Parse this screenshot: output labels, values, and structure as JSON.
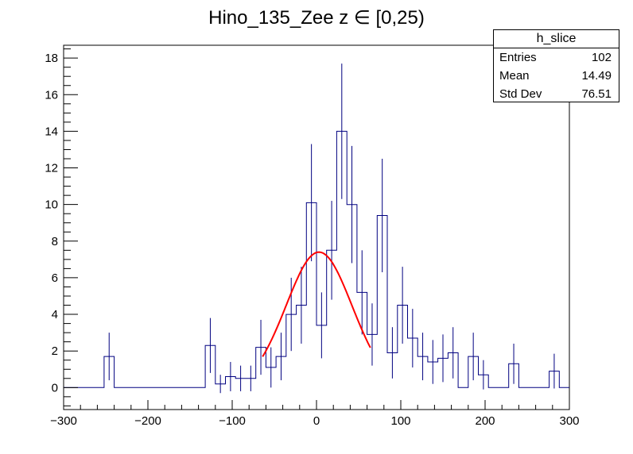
{
  "chart_data": {
    "type": "histogram",
    "title": "Hino_135_Zee z  ∈ [0,25)",
    "xlabel": "",
    "ylabel": "",
    "xlim": [
      -300,
      300
    ],
    "ylim": [
      -1.2,
      18.7
    ],
    "x_ticks": [
      -300,
      -200,
      -100,
      0,
      100,
      200,
      300
    ],
    "y_ticks": [
      0,
      2,
      4,
      6,
      8,
      10,
      12,
      14,
      16,
      18
    ],
    "bin_width": 12,
    "bin_edges_start": -300,
    "values": [
      0,
      0,
      0,
      0,
      1.7,
      0,
      0,
      0,
      0,
      0,
      0,
      0,
      0,
      0,
      2.3,
      0.2,
      0.6,
      0.5,
      0.5,
      2.2,
      1.1,
      1.7,
      4.0,
      4.5,
      10.1,
      3.4,
      7.5,
      14.0,
      10.0,
      5.2,
      2.9,
      9.4,
      1.9,
      4.5,
      2.7,
      1.7,
      1.4,
      1.6,
      1.9,
      0,
      1.7,
      0.7,
      0,
      0,
      1.3,
      0,
      0,
      0,
      0.9,
      0
    ],
    "errors": [
      0,
      0,
      0,
      0,
      1.3,
      0,
      0,
      0,
      0,
      0,
      0,
      0,
      0,
      0,
      1.5,
      0.5,
      0.8,
      0.7,
      0.7,
      1.5,
      1.1,
      1.3,
      2.0,
      2.1,
      3.2,
      1.8,
      2.7,
      3.7,
      3.2,
      2.3,
      1.7,
      3.1,
      1.4,
      2.1,
      1.6,
      1.3,
      1.2,
      1.3,
      1.4,
      0,
      1.3,
      0.8,
      0,
      0,
      1.1,
      0,
      0,
      0,
      0.95,
      0
    ],
    "fit": {
      "type": "gaussian",
      "amplitude": 7.4,
      "mean": 3,
      "sigma": 39,
      "x_range": [
        -64,
        64
      ],
      "color": "#ff0000"
    },
    "hist_color": "#000080",
    "stats_box": {
      "name": "h_slice",
      "entries_label": "Entries",
      "entries_value": "102",
      "mean_label": "Mean",
      "mean_value": "14.49",
      "std_label": "Std Dev",
      "std_value": "76.51"
    }
  }
}
